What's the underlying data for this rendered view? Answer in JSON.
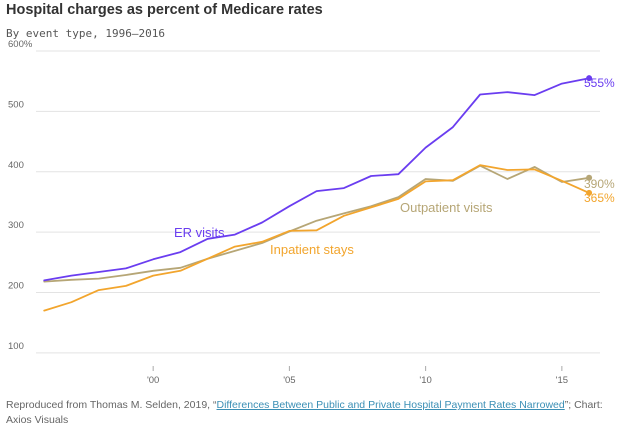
{
  "title": "Hospital charges as percent of Medicare rates",
  "subtitle": "By event type, 1996–2016",
  "source": {
    "prefix": "Reproduced from Thomas M. Selden, 2019, “",
    "link_text": "Differences Between Public and Private Hospital Payment Rates Narrowed",
    "suffix": "”; Chart: Axios Visuals"
  },
  "colors": {
    "er": "#6a3df0",
    "inpatient": "#f2a52d",
    "outpatient": "#b6a676",
    "grid": "#e3e3e3",
    "axis_text": "#666666"
  },
  "chart_data": {
    "type": "line",
    "title": "Hospital charges as percent of Medicare rates",
    "subtitle": "By event type, 1996–2016",
    "x": [
      1996,
      1997,
      1998,
      1999,
      2000,
      2001,
      2002,
      2003,
      2004,
      2005,
      2006,
      2007,
      2008,
      2009,
      2010,
      2011,
      2012,
      2013,
      2014,
      2015,
      2016
    ],
    "xlim": [
      1995.7,
      2016.4
    ],
    "ylim": [
      70,
      605
    ],
    "x_ticks": [
      {
        "value": 2000,
        "label": "'00"
      },
      {
        "value": 2005,
        "label": "'05"
      },
      {
        "value": 2010,
        "label": "'10"
      },
      {
        "value": 2015,
        "label": "'15"
      }
    ],
    "y_ticks": [
      {
        "value": 100,
        "label": "100"
      },
      {
        "value": 200,
        "label": "200"
      },
      {
        "value": 300,
        "label": "300"
      },
      {
        "value": 400,
        "label": "400"
      },
      {
        "value": 500,
        "label": "500"
      },
      {
        "value": 600,
        "label": "600%"
      }
    ],
    "grid": "horizontal",
    "series": [
      {
        "key": "er",
        "name": "ER visits",
        "end_label": "555%",
        "values": [
          220,
          228,
          234,
          240,
          255,
          267,
          289,
          296,
          316,
          343,
          368,
          373,
          393,
          396,
          440,
          474,
          528,
          532,
          527,
          546,
          555
        ]
      },
      {
        "key": "inpatient",
        "name": "Inpatient stays",
        "end_label": "365%",
        "values": [
          170,
          184,
          204,
          211,
          228,
          236,
          256,
          276,
          284,
          302,
          303,
          327,
          341,
          355,
          384,
          386,
          411,
          403,
          404,
          385,
          365
        ]
      },
      {
        "key": "outpatient",
        "name": "Outpatient visits",
        "end_label": "390%",
        "values": [
          218,
          221,
          223,
          229,
          236,
          241,
          256,
          269,
          282,
          301,
          319,
          331,
          343,
          358,
          388,
          385,
          410,
          388,
          408,
          383,
          390
        ]
      }
    ]
  }
}
